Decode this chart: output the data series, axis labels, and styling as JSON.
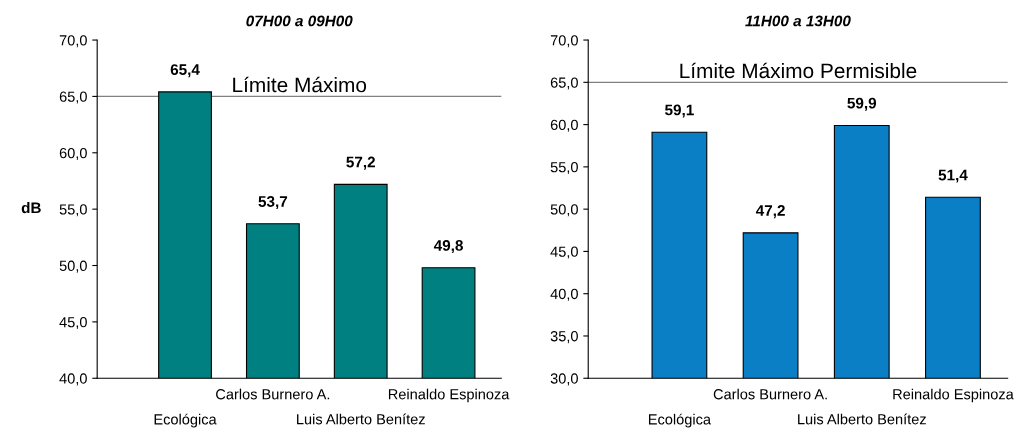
{
  "chart_data": [
    {
      "type": "bar",
      "title": "07H00 a 09H00",
      "ylabel": "dB",
      "categories": [
        "Ecológica",
        "Carlos Burnero A.",
        "Luis Alberto Benítez",
        "Reinaldo Espinoza"
      ],
      "values": [
        65.4,
        53.7,
        57.2,
        49.8
      ],
      "value_labels": [
        "65,4",
        "53,7",
        "57,2",
        "49,8"
      ],
      "color": "#008080",
      "ylim": [
        40,
        70
      ],
      "yticks": [
        {
          "value": 40,
          "label": "40,0"
        },
        {
          "value": 45,
          "label": "45,0"
        },
        {
          "value": 50,
          "label": "50,0"
        },
        {
          "value": 55,
          "label": "55,0"
        },
        {
          "value": 60,
          "label": "60,0"
        },
        {
          "value": 65,
          "label": "65,0"
        },
        {
          "value": 70,
          "label": "70,0"
        }
      ],
      "ref_lines": [
        {
          "axis": "y",
          "value": 65,
          "label": "Límite Máximo",
          "color": "#808080"
        }
      ],
      "grid": false,
      "legend": false
    },
    {
      "type": "bar",
      "title": "11H00 a 13H00",
      "categories": [
        "Ecológica",
        "Carlos Burnero A.",
        "Luis Alberto Benítez",
        "Reinaldo Espinoza"
      ],
      "values": [
        59.1,
        47.2,
        59.9,
        51.4
      ],
      "value_labels": [
        "59,1",
        "47,2",
        "59,9",
        "51,4"
      ],
      "color": "#0a7fc6",
      "ylim": [
        30,
        70
      ],
      "yticks": [
        {
          "value": 30,
          "label": "30,0"
        },
        {
          "value": 35,
          "label": "35,0"
        },
        {
          "value": 40,
          "label": "40,0"
        },
        {
          "value": 45,
          "label": "45,0"
        },
        {
          "value": 50,
          "label": "50,0"
        },
        {
          "value": 55,
          "label": "55,0"
        },
        {
          "value": 60,
          "label": "60,0"
        },
        {
          "value": 65,
          "label": "65,0"
        },
        {
          "value": 70,
          "label": "70,0"
        }
      ],
      "ref_lines": [
        {
          "axis": "y",
          "value": 65,
          "label": "Límite Máximo Permisible",
          "color": "#808080"
        }
      ],
      "grid": false,
      "legend": false
    }
  ]
}
